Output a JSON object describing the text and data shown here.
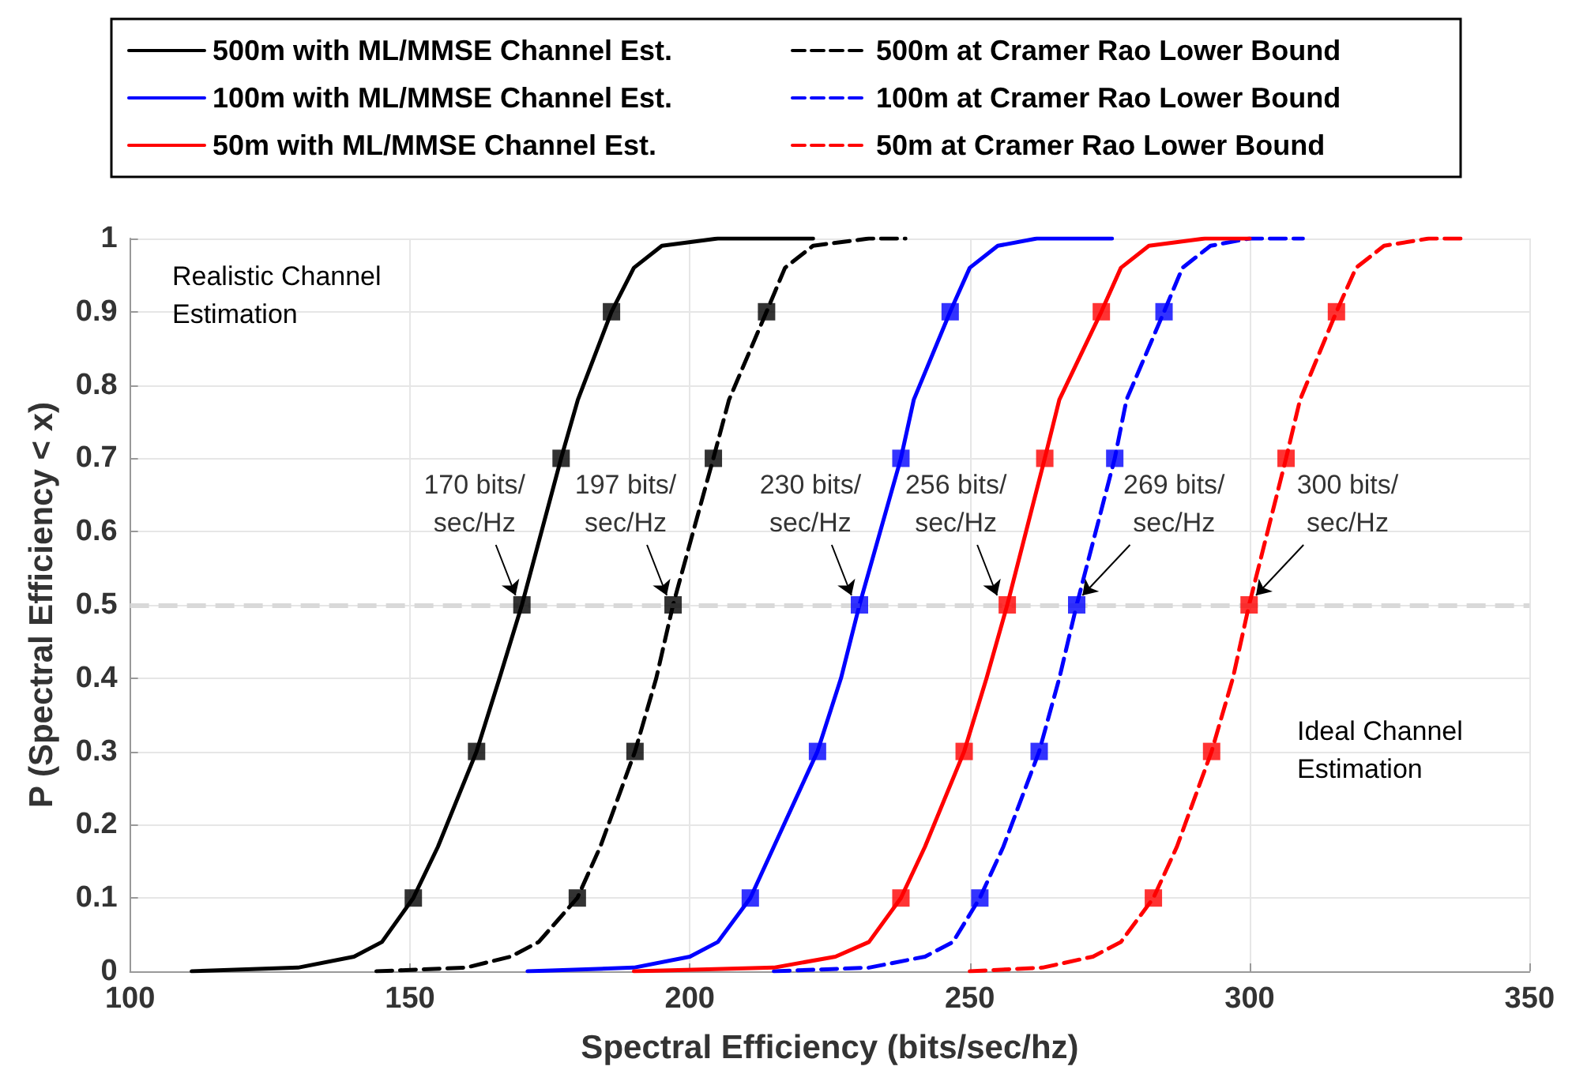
{
  "chart_data": {
    "type": "line",
    "xlabel": "Spectral Efficiency (bits/sec/hz)",
    "ylabel": "P (Spectral Efficiency < x)",
    "xlim": [
      100,
      350
    ],
    "xticks": [
      100,
      150,
      200,
      250,
      300,
      350
    ],
    "ylim": [
      0,
      1
    ],
    "yticks": [
      0,
      0.1,
      0.2,
      0.3,
      0.4,
      0.5,
      0.6,
      0.7,
      0.8,
      0.9,
      1
    ],
    "grid": true,
    "legend": "top",
    "series": [
      {
        "name": "500m with ML/MMSE Channel Est.",
        "color": "#000000",
        "line_style": "solid",
        "x": [
          111,
          130,
          140,
          145,
          150.6,
          155,
          161.9,
          166,
          170,
          177,
          180,
          186,
          190,
          195,
          205,
          222
        ],
        "values": [
          0,
          0.005,
          0.02,
          0.04,
          0.1,
          0.17,
          0.3,
          0.4,
          0.5,
          0.7,
          0.78,
          0.9,
          0.96,
          0.99,
          1,
          1
        ]
      },
      {
        "name": "500m at Cramer Rao Lower Bound",
        "color": "#000000",
        "line_style": "dashed",
        "x": [
          144,
          160,
          168,
          173,
          179.9,
          184,
          190.2,
          194,
          197,
          204.2,
          207,
          213.7,
          217,
          222,
          232,
          238.5
        ],
        "values": [
          0,
          0.005,
          0.02,
          0.04,
          0.1,
          0.17,
          0.3,
          0.4,
          0.5,
          0.7,
          0.78,
          0.9,
          0.96,
          0.99,
          1,
          1
        ]
      },
      {
        "name": "100m with ML/MMSE Channel Est.",
        "color": "#0000ff",
        "line_style": "solid",
        "x": [
          171,
          190,
          200,
          205,
          210.8,
          215,
          222.8,
          227,
          230.3,
          237.7,
          240,
          246.5,
          250,
          255,
          262,
          275.4
        ],
        "values": [
          0,
          0.005,
          0.02,
          0.04,
          0.1,
          0.17,
          0.3,
          0.4,
          0.5,
          0.7,
          0.78,
          0.9,
          0.96,
          0.99,
          1,
          1
        ]
      },
      {
        "name": "100m at Cramer Rao Lower Bound",
        "color": "#0000ff",
        "line_style": "dashed",
        "x": [
          215,
          232,
          242,
          247,
          251.8,
          256,
          262.4,
          266,
          269.1,
          275.9,
          278,
          284.7,
          288,
          293,
          300,
          309.5
        ],
        "values": [
          0,
          0.005,
          0.02,
          0.04,
          0.1,
          0.17,
          0.3,
          0.4,
          0.5,
          0.7,
          0.78,
          0.9,
          0.96,
          0.99,
          1,
          1
        ]
      },
      {
        "name": "50m with ML/MMSE Channel Est.",
        "color": "#ff0000",
        "line_style": "solid",
        "x": [
          190,
          215,
          226,
          232,
          237.7,
          242,
          249,
          253,
          256.7,
          263.4,
          266,
          273.5,
          277,
          282,
          292,
          300
        ],
        "values": [
          0,
          0.005,
          0.02,
          0.04,
          0.1,
          0.17,
          0.3,
          0.4,
          0.5,
          0.7,
          0.78,
          0.9,
          0.96,
          0.99,
          1,
          1
        ]
      },
      {
        "name": "50m at Cramer Rao Lower Bound",
        "color": "#ff0000",
        "line_style": "dashed",
        "x": [
          250,
          263,
          272,
          277,
          282.8,
          287,
          293.2,
          297,
          299.9,
          306.5,
          309,
          315.5,
          319,
          324,
          332,
          338.8
        ],
        "values": [
          0,
          0.005,
          0.02,
          0.04,
          0.1,
          0.17,
          0.3,
          0.4,
          0.5,
          0.7,
          0.78,
          0.9,
          0.96,
          0.99,
          1,
          1
        ]
      },
      {
        "type": "scatter",
        "marker": "square",
        "color": "#000000",
        "x": [
          150.6,
          161.9,
          170,
          177,
          186
        ],
        "values": [
          0.1,
          0.3,
          0.5,
          0.7,
          0.9
        ]
      },
      {
        "type": "scatter",
        "marker": "square",
        "color": "#000000",
        "x": [
          179.9,
          190.2,
          197,
          204.2,
          213.7
        ],
        "values": [
          0.1,
          0.3,
          0.5,
          0.7,
          0.9
        ]
      },
      {
        "type": "scatter",
        "marker": "square",
        "color": "#0000ff",
        "x": [
          210.8,
          222.8,
          230.3,
          237.7,
          246.5
        ],
        "values": [
          0.1,
          0.3,
          0.5,
          0.7,
          0.9
        ]
      },
      {
        "type": "scatter",
        "marker": "square",
        "color": "#0000ff",
        "x": [
          251.8,
          262.4,
          269.1,
          275.9,
          284.7
        ],
        "values": [
          0.1,
          0.3,
          0.5,
          0.7,
          0.9
        ]
      },
      {
        "type": "scatter",
        "marker": "square",
        "color": "#ff0000",
        "x": [
          237.7,
          249,
          256.7,
          263.4,
          273.5
        ],
        "values": [
          0.1,
          0.3,
          0.5,
          0.7,
          0.9
        ]
      },
      {
        "type": "scatter",
        "marker": "square",
        "color": "#ff0000",
        "x": [
          282.8,
          293.2,
          299.9,
          306.5,
          315.5
        ],
        "values": [
          0.1,
          0.3,
          0.5,
          0.7,
          0.9
        ]
      }
    ],
    "ref_lines": [
      {
        "axis": "y",
        "value": 0.5,
        "color": "#d9d9d9",
        "line_style": "dashed"
      }
    ],
    "annotations": [
      {
        "text": "170 bits/\nsec/Hz",
        "x": 170,
        "y": 0.5
      },
      {
        "text": "197 bits/\nsec/Hz",
        "x": 197,
        "y": 0.5
      },
      {
        "text": "230 bits/\nsec/Hz",
        "x": 230,
        "y": 0.5
      },
      {
        "text": "256 bits/\nsec/Hz",
        "x": 256,
        "y": 0.5
      },
      {
        "text": "269 bits/\nsec/Hz",
        "x": 269,
        "y": 0.5
      },
      {
        "text": "300 bits/\nsec/Hz",
        "x": 300,
        "y": 0.5
      },
      "Realistic Channel\nEstimation",
      "Ideal Channel\nEstimation"
    ]
  }
}
